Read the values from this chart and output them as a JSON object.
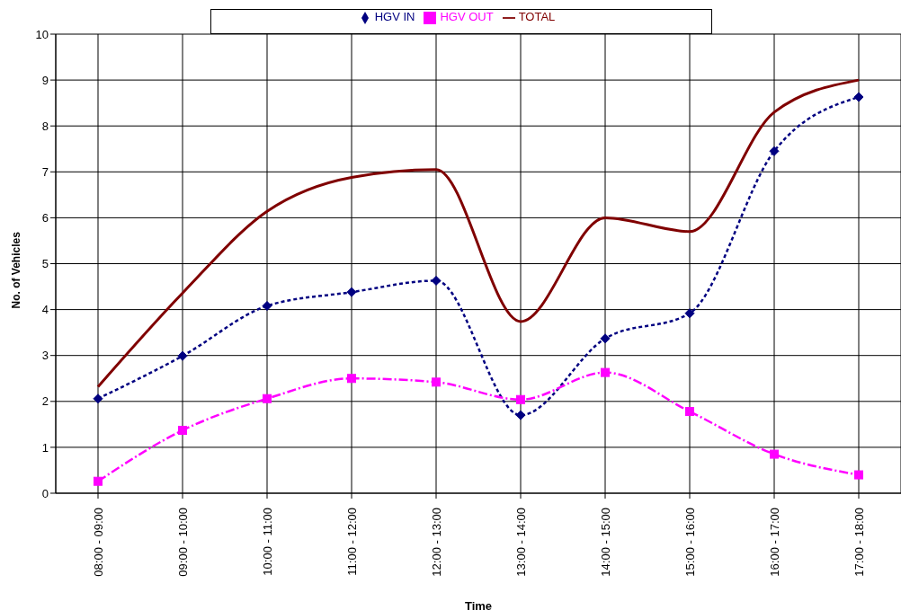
{
  "chart_data": {
    "type": "line",
    "xlabel": "Time",
    "ylabel": "No. of Vehicles",
    "categories": [
      "08:00 - 09:00",
      "09:00 - 10:00",
      "10:00 - 11:00",
      "11:00 - 12:00",
      "12:00 - 13:00",
      "13:00 - 14:00",
      "14:00 - 15:00",
      "15:00 - 16:00",
      "16:00 - 17:00",
      "17:00 - 18:00"
    ],
    "series": [
      {
        "name": "HGV IN",
        "color": "#000080",
        "marker": "diamond",
        "line_style": "dashed",
        "values": [
          2.06,
          2.99,
          4.08,
          4.38,
          4.63,
          1.7,
          3.37,
          3.92,
          7.45,
          8.63
        ]
      },
      {
        "name": "HGV OUT",
        "color": "#ff00ff",
        "marker": "square",
        "line_style": "dashdot",
        "values": [
          0.26,
          1.37,
          2.06,
          2.5,
          2.42,
          2.04,
          2.63,
          1.78,
          0.85,
          0.4
        ]
      },
      {
        "name": "TOTAL",
        "color": "#800000",
        "marker": "none",
        "line_style": "solid",
        "values": [
          2.32,
          4.36,
          6.14,
          6.88,
          7.05,
          3.74,
          6.0,
          5.7,
          8.3,
          9.0
        ]
      }
    ],
    "ylim": [
      0,
      10
    ],
    "yticks": [
      0,
      1,
      2,
      3,
      4,
      5,
      6,
      7,
      8,
      9,
      10
    ],
    "grid": true,
    "legend": "top"
  }
}
